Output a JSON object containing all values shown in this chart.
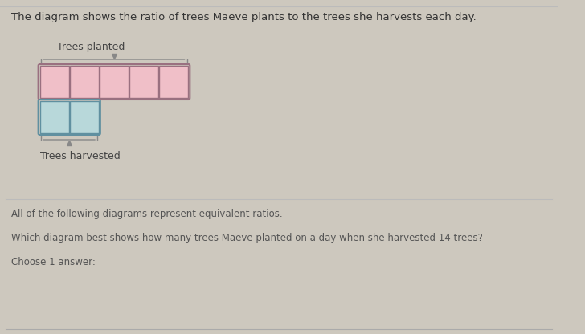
{
  "bg_color": "#cdc8be",
  "title_line": "The diagram shows the ratio of trees Maeve plants to the trees she harvests each day.",
  "label_planted": "Trees planted",
  "label_harvested": "Trees harvested",
  "text_line2": "All of the following diagrams represent equivalent ratios.",
  "text_line3": "Which diagram best shows how many trees Maeve planted on a day when she harvested 14 trees?",
  "text_line4": "Choose 1 answer:",
  "planted_count": 5,
  "harvested_count": 2,
  "planted_color": "#f0bfc8",
  "planted_edge": "#9a7080",
  "harvested_color": "#b8d8da",
  "harvested_edge": "#6090a0",
  "title_fontsize": 9.5,
  "label_fontsize": 9,
  "body_fontsize": 8.5
}
